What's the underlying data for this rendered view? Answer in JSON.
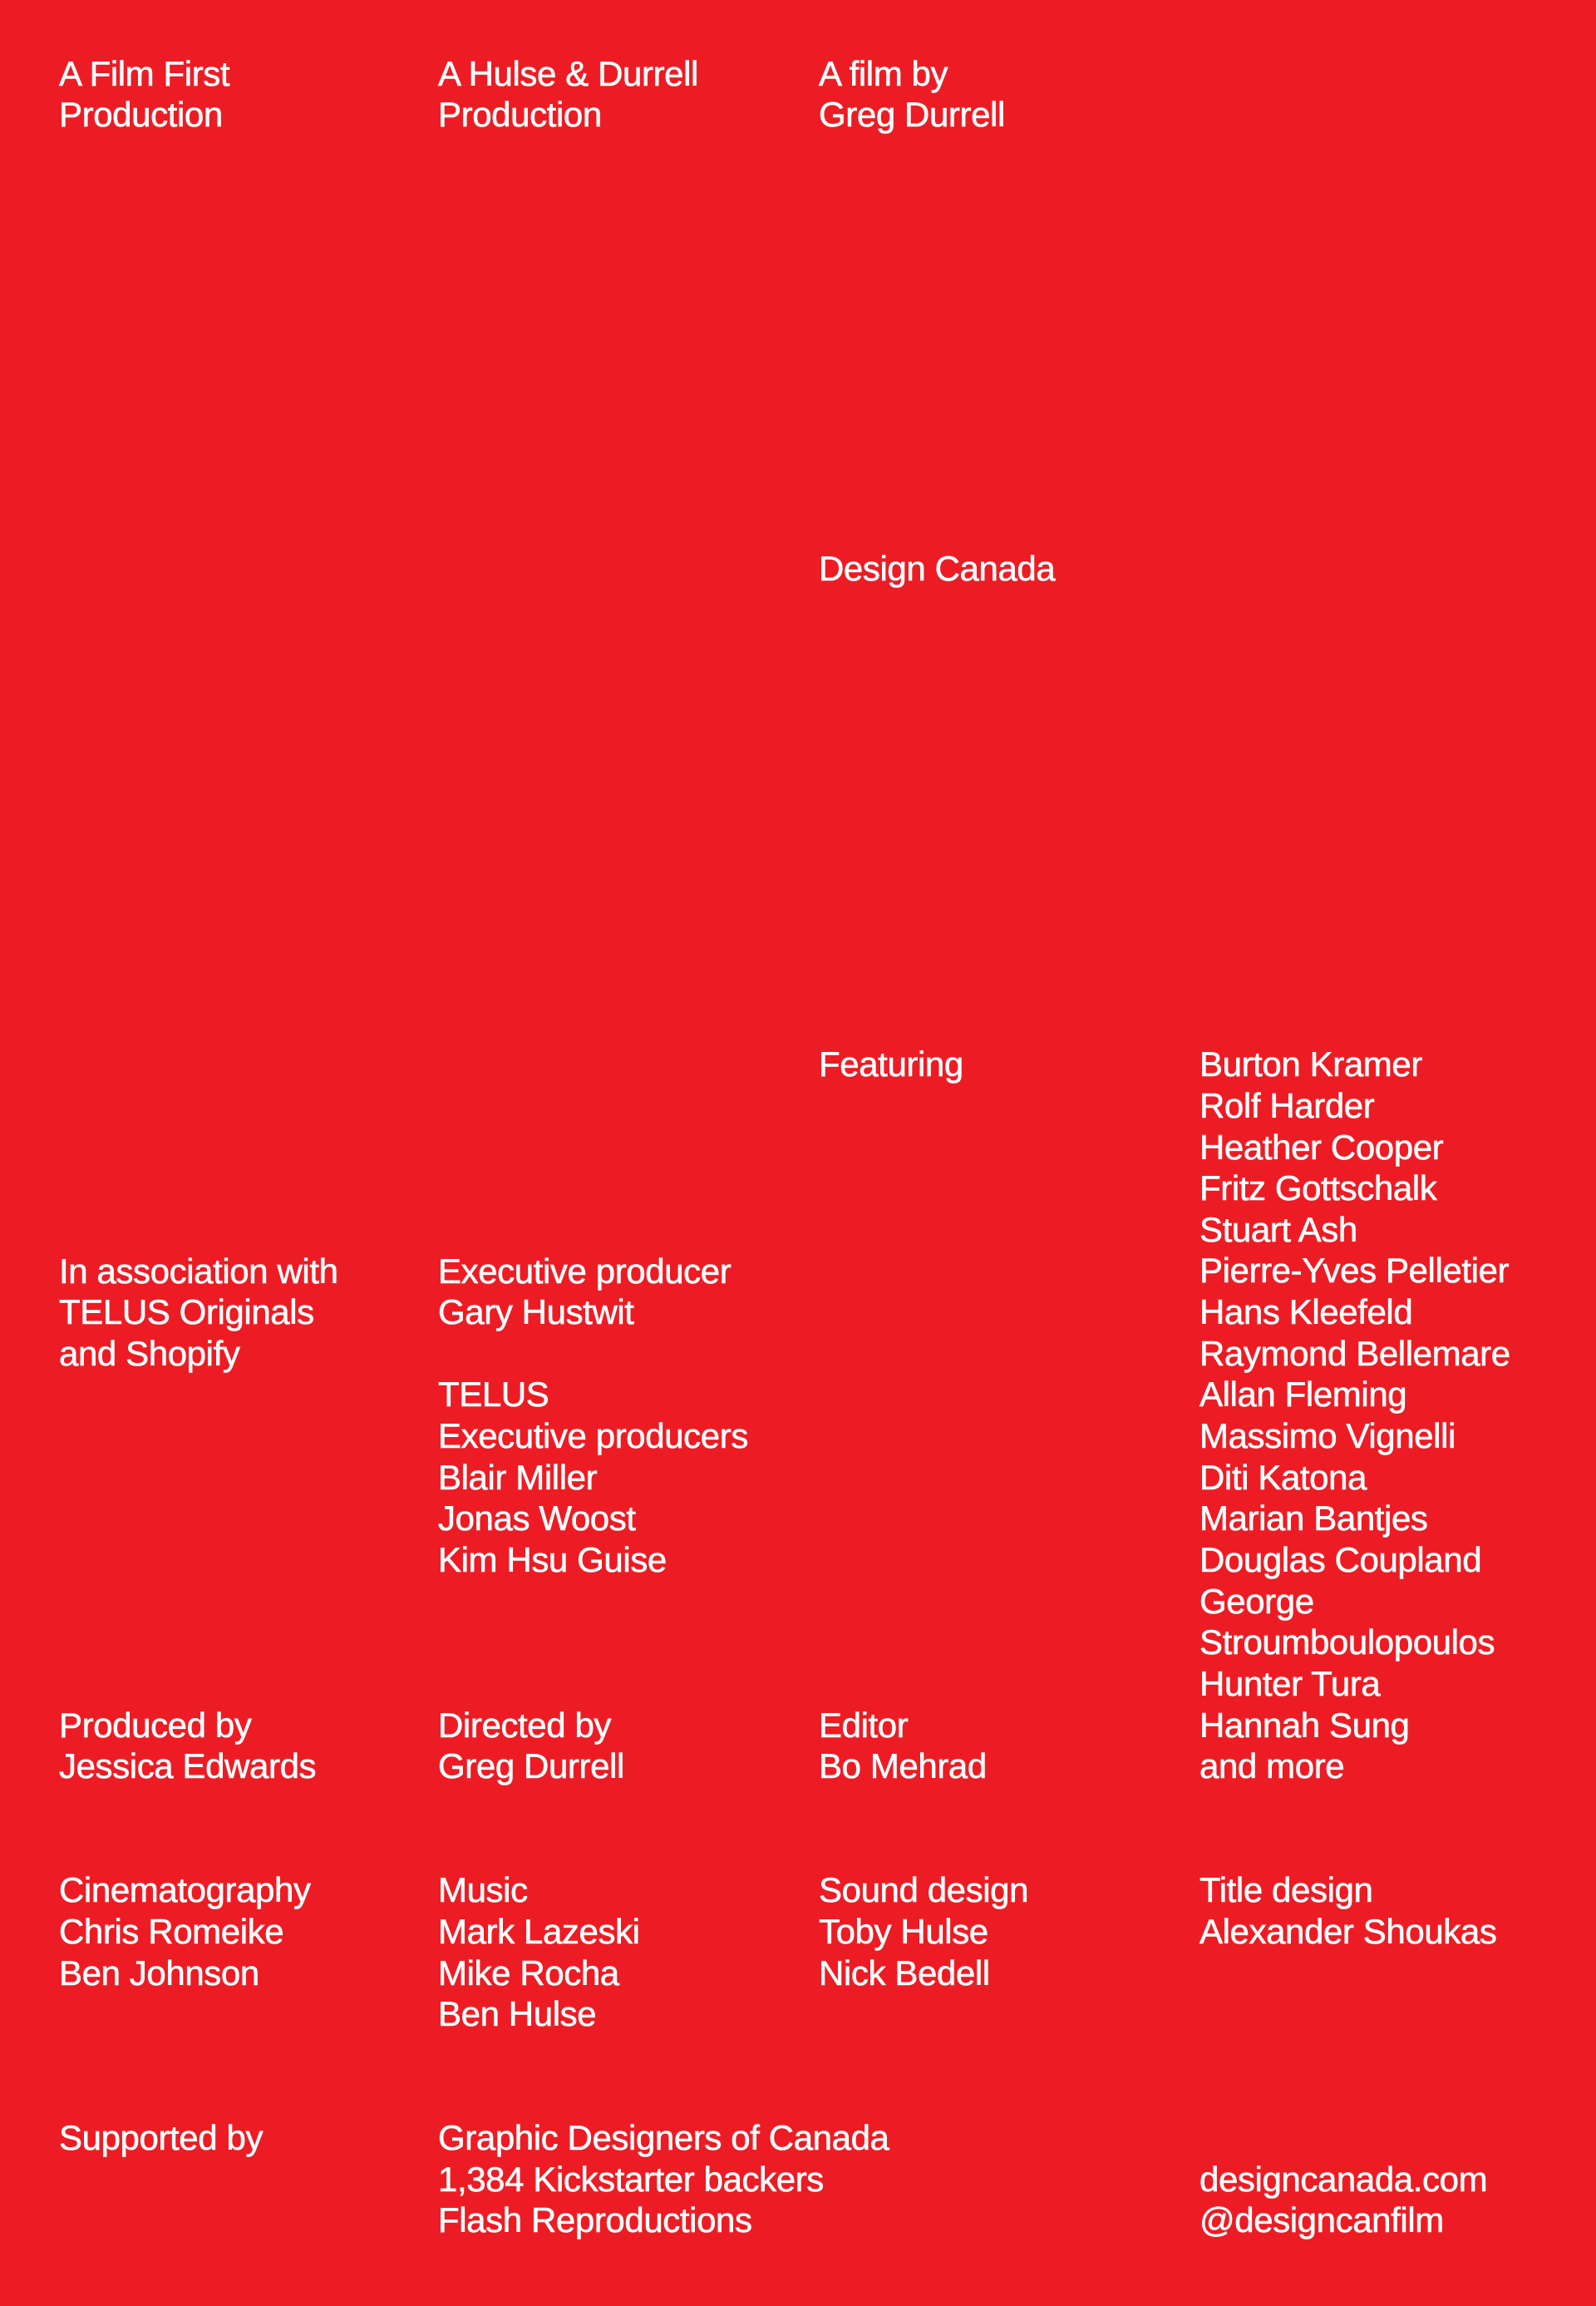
{
  "accent_color": "#ED1C24",
  "text_color": "#FFFFFF",
  "header": {
    "film_first": [
      "A Film First",
      "Production"
    ],
    "hulse_durrell": [
      "A Hulse & Durrell",
      "Production"
    ],
    "film_by": [
      "A film by",
      "Greg Durrell"
    ]
  },
  "title": "Design Canada",
  "featuring": {
    "label": "Featuring",
    "names": [
      "Burton Kramer",
      "Rolf Harder",
      "Heather Cooper",
      "Fritz Gottschalk",
      "Stuart Ash",
      "Pierre-Yves Pelletier",
      "Hans Kleefeld",
      "Raymond Bellemare",
      "Allan Fleming",
      "Massimo Vignelli",
      "Diti Katona",
      "Marian Bantjes",
      "Douglas Coupland",
      "George Stroumboulopoulos",
      "Hunter Tura",
      "Hannah Sung",
      "and more"
    ]
  },
  "association": [
    "In association with",
    "TELUS Originals",
    "and Shopify"
  ],
  "executive": {
    "producer": [
      "Executive producer",
      "Gary Hustwit"
    ],
    "telus": [
      "TELUS",
      "Executive producers",
      "Blair Miller",
      "Jonas Woost",
      "Kim Hsu Guise"
    ]
  },
  "credits": {
    "produced": [
      "Produced by",
      "Jessica Edwards"
    ],
    "directed": [
      "Directed by",
      "Greg Durrell"
    ],
    "editor": [
      "Editor",
      "Bo Mehrad"
    ],
    "cinematography": [
      "Cinematography",
      "Chris Romeike",
      "Ben Johnson"
    ],
    "music": [
      "Music",
      "Mark Lazeski",
      "Mike Rocha",
      "Ben Hulse"
    ],
    "sound": [
      "Sound design",
      "Toby Hulse",
      "Nick Bedell"
    ],
    "title_design": [
      "Title design",
      "Alexander Shoukas"
    ]
  },
  "supported": {
    "label": "Supported by",
    "supporters": [
      "Graphic Designers of Canada",
      "1,384 Kickstarter backers",
      "Flash Reproductions"
    ]
  },
  "links": [
    "designcanada.com",
    "@designcanfilm"
  ]
}
